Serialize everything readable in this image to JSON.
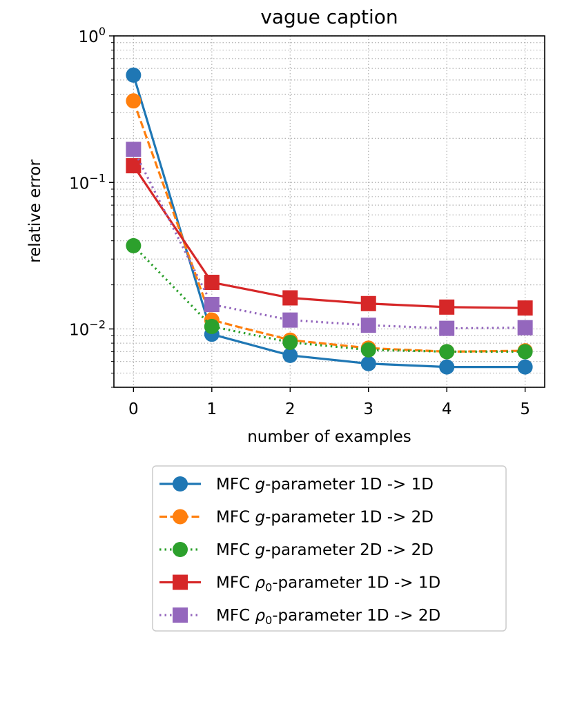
{
  "chart_data": {
    "type": "line",
    "title": "vague caption",
    "xlabel": "number of examples",
    "ylabel": "relative error",
    "yscale": "log",
    "ylim": [
      0.004,
      1.0
    ],
    "xlim": [
      -0.25,
      5.25
    ],
    "grid": true,
    "x": [
      0,
      1,
      2,
      3,
      4,
      5
    ],
    "x_ticks": [
      "0",
      "1",
      "2",
      "3",
      "4",
      "5"
    ],
    "y_ticks": [
      {
        "value": 1.0,
        "base": "10",
        "exp": "0"
      },
      {
        "value": 0.1,
        "base": "10",
        "exp": "−1"
      },
      {
        "value": 0.01,
        "base": "10",
        "exp": "−2"
      }
    ],
    "legend_position": "below",
    "series": [
      {
        "name_prefix": "MFC ",
        "name_symbol": "g",
        "name_sub": "",
        "name_suffix": "-parameter 1D -> 1D",
        "color": "#1f77b4",
        "linestyle": "solid",
        "marker": "circle",
        "values": [
          0.54,
          0.0092,
          0.0066,
          0.0058,
          0.0055,
          0.0055
        ]
      },
      {
        "name_prefix": "MFC ",
        "name_symbol": "g",
        "name_sub": "",
        "name_suffix": "-parameter 1D -> 2D",
        "color": "#ff7f0e",
        "linestyle": "dashed",
        "marker": "circle",
        "values": [
          0.36,
          0.0115,
          0.0084,
          0.0074,
          0.007,
          0.0071
        ]
      },
      {
        "name_prefix": "MFC ",
        "name_symbol": "g",
        "name_sub": "",
        "name_suffix": "-parameter 2D -> 2D",
        "color": "#2ca02c",
        "linestyle": "dotted",
        "marker": "circle",
        "values": [
          0.037,
          0.0104,
          0.0081,
          0.0072,
          0.007,
          0.007
        ]
      },
      {
        "name_prefix": "MFC ",
        "name_symbol": "ρ",
        "name_sub": "0",
        "name_suffix": "-parameter 1D -> 1D",
        "color": "#d62728",
        "linestyle": "solid",
        "marker": "square",
        "values": [
          0.13,
          0.0208,
          0.0163,
          0.0149,
          0.0141,
          0.0139
        ]
      },
      {
        "name_prefix": "MFC ",
        "name_symbol": "ρ",
        "name_sub": "0",
        "name_suffix": "-parameter 1D -> 2D",
        "color": "#9467bd",
        "linestyle": "dotted",
        "marker": "square",
        "values": [
          0.168,
          0.0147,
          0.0115,
          0.0106,
          0.0101,
          0.0102
        ]
      }
    ]
  }
}
